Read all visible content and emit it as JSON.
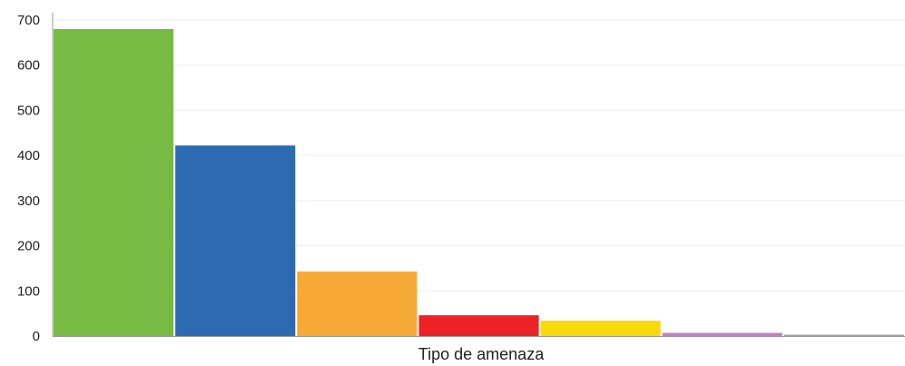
{
  "chart_data": {
    "type": "bar",
    "title": "",
    "xlabel": "Tipo de amenaza",
    "ylabel": "",
    "ylim": [
      0,
      700
    ],
    "yticks": [
      0,
      100,
      200,
      300,
      400,
      500,
      600,
      700
    ],
    "grid": true,
    "legend": "none",
    "categories": [
      "",
      "",
      "",
      "",
      "",
      "",
      ""
    ],
    "values": [
      680,
      422,
      143,
      46,
      34,
      7,
      3
    ],
    "colors": [
      "#77bb44",
      "#2e6ab1",
      "#f7a935",
      "#ec2227",
      "#f9d90a",
      "#c77ec4",
      "#a0a0a0"
    ]
  }
}
